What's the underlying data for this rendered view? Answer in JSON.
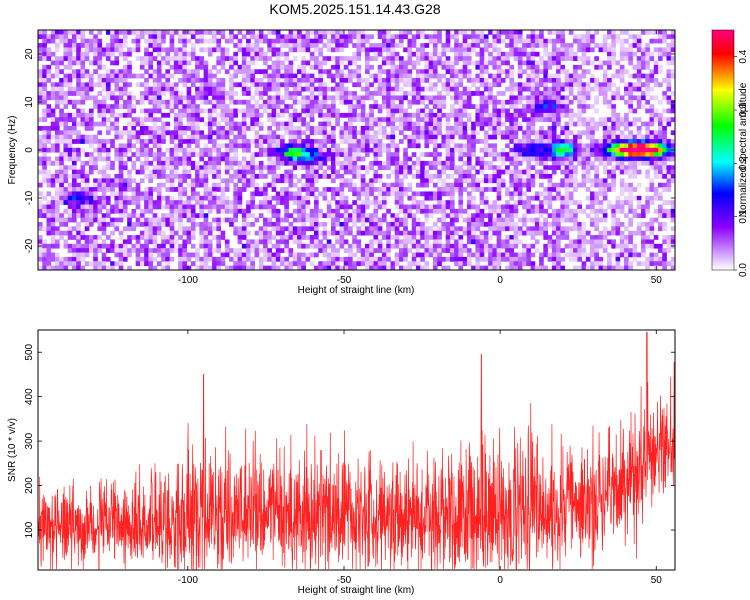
{
  "figure": {
    "title": "KOM5.2025.151.14.43.G28"
  },
  "chart_data": [
    {
      "type": "heatmap",
      "xlabel": "Height of straight line (km)",
      "ylabel": "Frequency (Hz)",
      "xlim": [
        -148,
        56
      ],
      "ylim": [
        -25,
        25
      ],
      "x_ticks": [
        -100,
        -50,
        0,
        50
      ],
      "x_tick_labels": [
        "-100",
        "-50",
        "0",
        "50"
      ],
      "y_ticks": [
        -20,
        -10,
        0,
        10,
        20
      ],
      "y_tick_labels": [
        "-20",
        "-10",
        "0",
        "10",
        "20"
      ],
      "colorbar": {
        "label": "Normalized spectral amplitude",
        "range": [
          0.0,
          0.45
        ],
        "ticks": [
          0.0,
          0.1,
          0.2,
          0.3,
          0.4
        ],
        "tick_labels": [
          "0.0",
          "0.1",
          "0.2",
          "0.3",
          "0.4"
        ],
        "colormap": [
          "#ffffff",
          "#8a00ff",
          "#0000ff",
          "#00ffff",
          "#00ff00",
          "#ffff00",
          "#ff0000",
          "#ff0080"
        ]
      },
      "features": [
        {
          "x": 47,
          "y": 0,
          "value": 0.43
        },
        {
          "x": 40,
          "y": 0,
          "value": 0.3
        },
        {
          "x": 20,
          "y": 0,
          "value": 0.25
        },
        {
          "x": 10,
          "y": 0,
          "value": 0.12
        },
        {
          "x": -66,
          "y": -0.5,
          "value": 0.22
        },
        {
          "x": -61,
          "y": -1.5,
          "value": 0.12
        },
        {
          "x": 15,
          "y": 9,
          "value": 0.1
        },
        {
          "x": -135,
          "y": -10,
          "value": 0.12
        }
      ],
      "grid": false,
      "legend": "none"
    },
    {
      "type": "line",
      "xlabel": "Height of straight line (km)",
      "ylabel": "SNR (10 * v/v)",
      "xlim": [
        -148,
        56
      ],
      "ylim": [
        10,
        550
      ],
      "x_ticks": [
        -100,
        -50,
        0,
        50
      ],
      "x_tick_labels": [
        "-100",
        "-50",
        "0",
        "50"
      ],
      "y_ticks": [
        100,
        200,
        300,
        400,
        500
      ],
      "y_tick_labels": [
        "100",
        "200",
        "300",
        "400",
        "500"
      ],
      "series_color": "#ff2020",
      "envelope": {
        "x": [
          -148,
          -120,
          -110,
          -100,
          -80,
          -60,
          -40,
          -20,
          0,
          20,
          30,
          40,
          45,
          50,
          56
        ],
        "mean": [
          110,
          110,
          120,
          135,
          140,
          140,
          135,
          140,
          145,
          150,
          160,
          200,
          240,
          270,
          300
        ],
        "max": [
          270,
          290,
          330,
          450,
          390,
          400,
          380,
          420,
          470,
          400,
          420,
          450,
          545,
          520,
          500
        ]
      },
      "peaks": [
        {
          "x": -95,
          "y": 450
        },
        {
          "x": -6,
          "y": 495
        },
        {
          "x": 47,
          "y": 545
        }
      ],
      "grid": false,
      "legend": "none"
    }
  ]
}
